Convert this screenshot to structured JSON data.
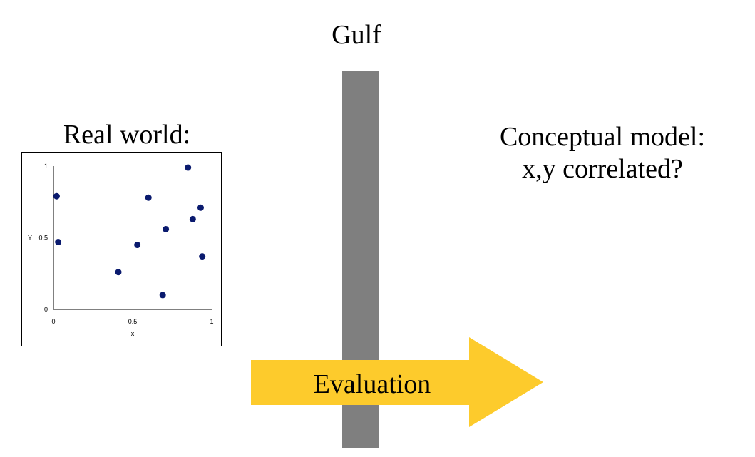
{
  "slide": {
    "gulf_title": "Gulf",
    "real_world_label": "Real world:",
    "conceptual_line1": "Conceptual model:",
    "conceptual_line2": "x,y correlated?",
    "arrow_label": "Evaluation"
  },
  "colors": {
    "bar": "#7f7f7f",
    "arrow": "#fdcb2c",
    "points": "#0a1a6e"
  },
  "chart_data": {
    "type": "scatter",
    "xlabel": "x",
    "ylabel": "Y",
    "xlim": [
      0,
      1
    ],
    "ylim": [
      0,
      1
    ],
    "x_ticks": [
      {
        "value": 0,
        "label": "0"
      },
      {
        "value": 0.5,
        "label": "0.5"
      },
      {
        "value": 1,
        "label": "1"
      }
    ],
    "y_ticks": [
      {
        "value": 0,
        "label": "0"
      },
      {
        "value": 0.5,
        "label": "0.5"
      },
      {
        "value": 1,
        "label": "1"
      }
    ],
    "points": [
      {
        "x": 0.02,
        "y": 0.79
      },
      {
        "x": 0.03,
        "y": 0.47
      },
      {
        "x": 0.41,
        "y": 0.26
      },
      {
        "x": 0.53,
        "y": 0.45
      },
      {
        "x": 0.6,
        "y": 0.78
      },
      {
        "x": 0.69,
        "y": 0.1
      },
      {
        "x": 0.71,
        "y": 0.56
      },
      {
        "x": 0.85,
        "y": 0.99
      },
      {
        "x": 0.88,
        "y": 0.63
      },
      {
        "x": 0.93,
        "y": 0.71
      },
      {
        "x": 0.94,
        "y": 0.37
      }
    ]
  }
}
